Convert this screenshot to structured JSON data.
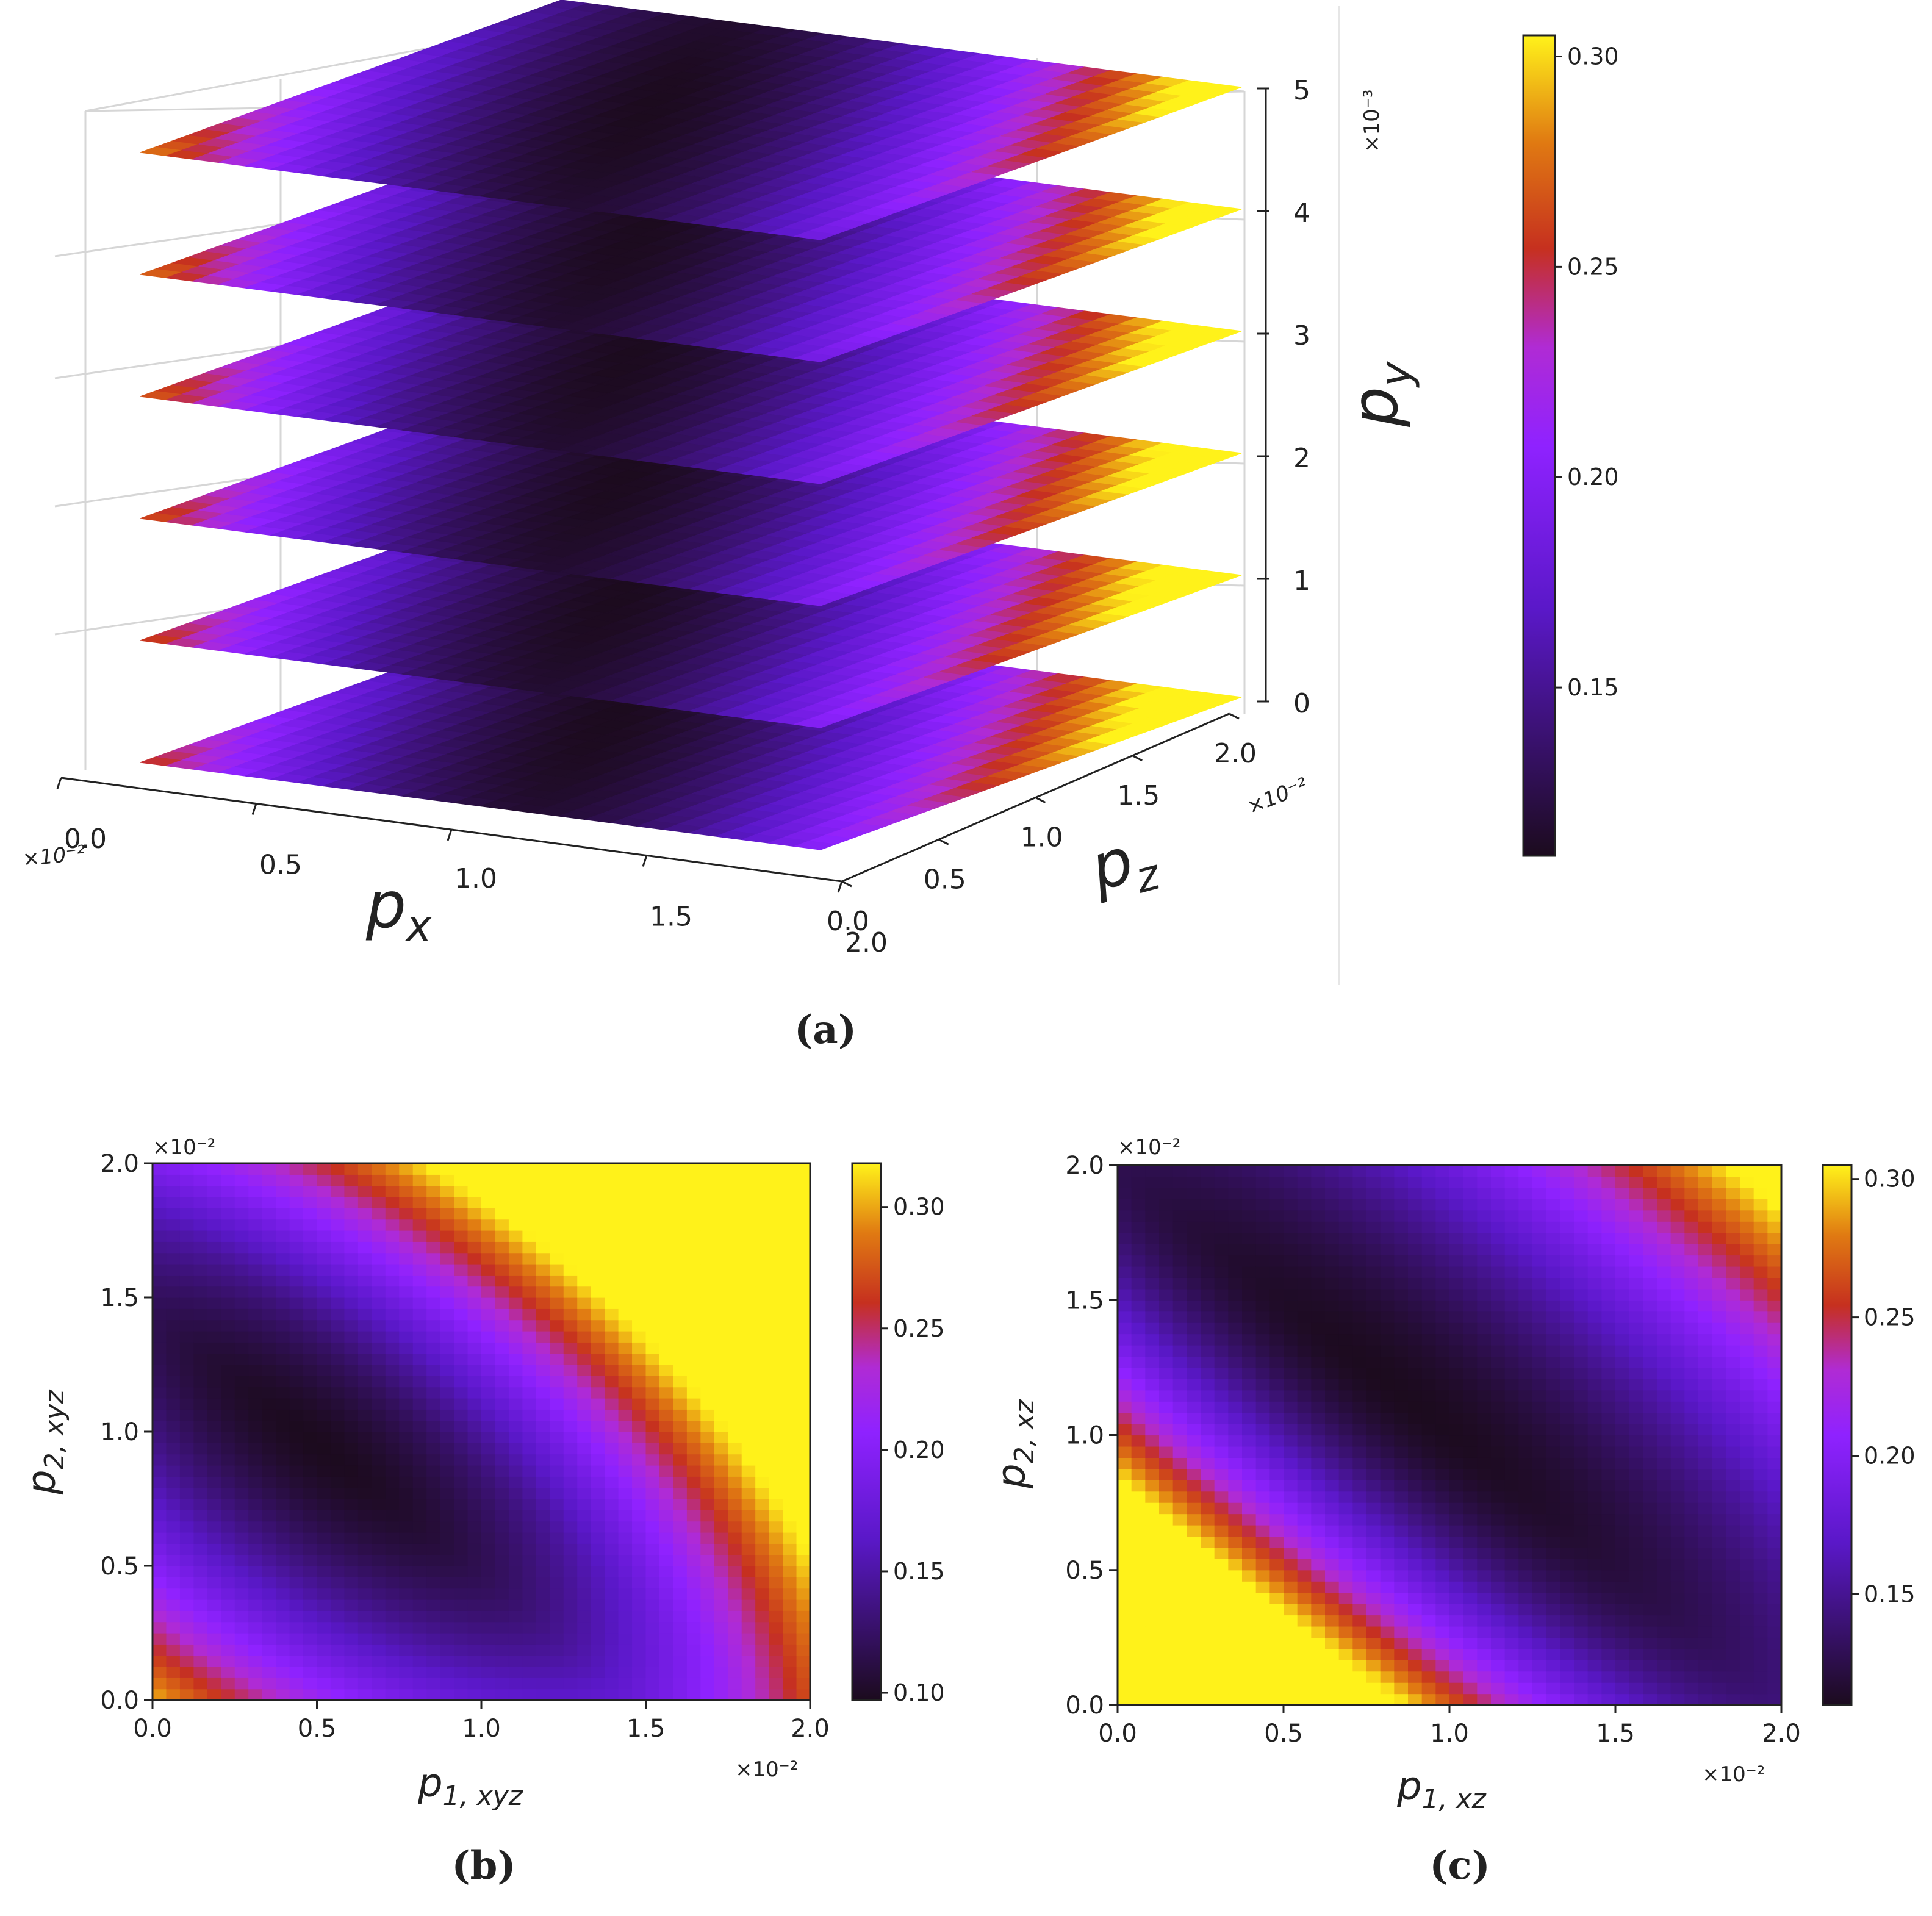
{
  "colormap": {
    "name": "gnuplot-like",
    "stops": [
      {
        "t": 0.0,
        "color": "#1c0b1e"
      },
      {
        "t": 0.3,
        "color": "#5a18c8"
      },
      {
        "t": 0.5,
        "color": "#8f22ff"
      },
      {
        "t": 0.62,
        "color": "#b02bd4"
      },
      {
        "t": 0.74,
        "color": "#c6301f"
      },
      {
        "t": 0.87,
        "color": "#e07a12"
      },
      {
        "t": 1.0,
        "color": "#fff21a"
      }
    ],
    "contour_line_color": "#3a1540"
  },
  "chart_data": [
    {
      "id": "a",
      "type": "contour3d",
      "caption": "(a)",
      "x_label_base": "p",
      "x_label_sub": "x",
      "z_label_base": "p",
      "z_label_sub": "z",
      "y_label_base": "p",
      "y_label_sub": "y",
      "x_ticks": [
        "0.0",
        "0.5",
        "1.0",
        "1.5",
        "2.0"
      ],
      "z_ticks": [
        "0.0",
        "0.5",
        "1.0",
        "1.5",
        "2.0"
      ],
      "y_ticks": [
        "0",
        "1",
        "2",
        "3",
        "4",
        "5"
      ],
      "x_range": [
        0.0,
        2.0
      ],
      "z_range": [
        0.0,
        2.0
      ],
      "y_range": [
        0,
        5
      ],
      "x_scale_label": "×10⁻²",
      "z_scale_label": "×10⁻²",
      "y_scale_label": "×10⁻³",
      "slice_levels_py": [
        0,
        1,
        2,
        3,
        4,
        5
      ],
      "colorbar": {
        "min": 0.11,
        "max": 0.305,
        "ticks": [
          "0.30",
          "0.25",
          "0.20",
          "0.15"
        ],
        "tick_values": [
          0.3,
          0.25,
          0.2,
          0.15
        ]
      }
    },
    {
      "id": "b",
      "type": "heatmap",
      "caption": "(b)",
      "xlabel_base": "p",
      "xlabel_sub": "1, xyz",
      "ylabel_base": "p",
      "ylabel_sub": "2, xyz",
      "x_ticks": [
        "0.0",
        "0.5",
        "1.0",
        "1.5",
        "2.0"
      ],
      "y_ticks": [
        "0.0",
        "0.5",
        "1.0",
        "1.5",
        "2.0"
      ],
      "xlim": [
        0.0,
        2.0
      ],
      "ylim": [
        0.0,
        2.0
      ],
      "x_scale_label": "×10⁻²",
      "y_scale_label": "×10⁻²",
      "minimum_location": [
        0.5,
        0.95
      ],
      "colorbar": {
        "min": 0.097,
        "max": 0.318,
        "ticks": [
          "0.30",
          "0.25",
          "0.20",
          "0.15",
          "0.10"
        ],
        "tick_values": [
          0.3,
          0.25,
          0.2,
          0.15,
          0.1
        ]
      }
    },
    {
      "id": "c",
      "type": "heatmap",
      "caption": "(c)",
      "xlabel_base": "p",
      "xlabel_sub": "1, xz",
      "ylabel_base": "p",
      "ylabel_sub": "2, xz",
      "x_ticks": [
        "0.0",
        "0.5",
        "1.0",
        "1.5",
        "2.0"
      ],
      "y_ticks": [
        "0.0",
        "0.5",
        "1.0",
        "1.5",
        "2.0"
      ],
      "xlim": [
        0.0,
        2.0
      ],
      "ylim": [
        0.0,
        2.0
      ],
      "x_scale_label": "×10⁻²",
      "y_scale_label": "×10⁻²",
      "minimum_location": [
        0.85,
        1.15
      ],
      "colorbar": {
        "min": 0.11,
        "max": 0.305,
        "ticks": [
          "0.30",
          "0.25",
          "0.20",
          "0.15"
        ],
        "tick_values": [
          0.3,
          0.25,
          0.2,
          0.15
        ]
      }
    }
  ]
}
